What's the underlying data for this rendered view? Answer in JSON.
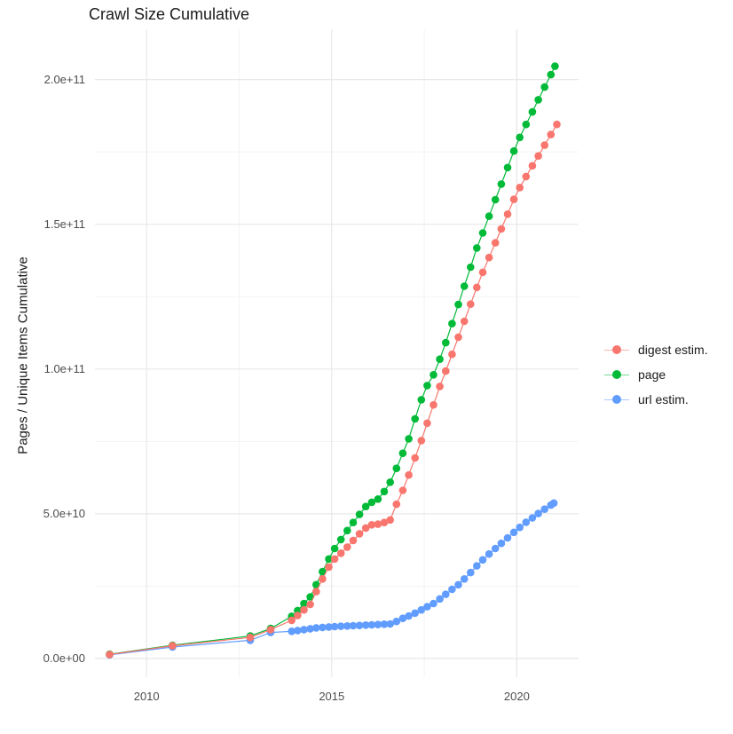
{
  "chart_data": {
    "type": "scatter",
    "title": "Crawl Size Cumulative",
    "xlabel": "",
    "ylabel": "Pages / Unique Items Cumulative",
    "value_unit": "items, values in billions (1e9)",
    "grid": "on",
    "axes": {
      "x": {
        "major_ticks": [
          2010,
          2015,
          2020
        ],
        "tick_labels": [
          "2010",
          "2015",
          "2020"
        ],
        "minor_ticks": [
          2012.5,
          2017.5
        ],
        "range": [
          2008.6,
          2021.7
        ]
      },
      "y": {
        "major_ticks": [
          0,
          50,
          100,
          150,
          200
        ],
        "tick_labels": [
          "0.0e+00",
          "5.0e+10",
          "1.0e+11",
          "1.5e+11",
          "2.0e+11"
        ],
        "minor_ticks": [
          25,
          75,
          125,
          175
        ],
        "range": [
          0,
          210
        ]
      }
    },
    "legend": {
      "position": "right",
      "items": [
        "digest estim.",
        "page",
        "url estim."
      ]
    },
    "series": [
      {
        "name": "digest estim.",
        "color": "#F8766D",
        "points": [
          [
            2009.0,
            1.4
          ],
          [
            2010.7,
            4.4
          ],
          [
            2012.8,
            7.3
          ],
          [
            2013.35,
            10.0
          ],
          [
            2013.92,
            13.2
          ],
          [
            2014.08,
            14.9
          ],
          [
            2014.25,
            16.8
          ],
          [
            2014.42,
            18.7
          ],
          [
            2014.58,
            23.1
          ],
          [
            2014.75,
            27.5
          ],
          [
            2014.92,
            31.6
          ],
          [
            2015.08,
            34.4
          ],
          [
            2015.25,
            36.4
          ],
          [
            2015.42,
            38.5
          ],
          [
            2015.58,
            40.8
          ],
          [
            2015.75,
            43.1
          ],
          [
            2015.92,
            45.1
          ],
          [
            2016.08,
            46.2
          ],
          [
            2016.25,
            46.4
          ],
          [
            2016.42,
            47.0
          ],
          [
            2016.58,
            47.9
          ],
          [
            2016.75,
            53.3
          ],
          [
            2016.92,
            58.1
          ],
          [
            2017.08,
            63.4
          ],
          [
            2017.25,
            69.3
          ],
          [
            2017.42,
            75.3
          ],
          [
            2017.58,
            81.3
          ],
          [
            2017.75,
            87.6
          ],
          [
            2017.92,
            94.0
          ],
          [
            2018.08,
            99.3
          ],
          [
            2018.25,
            105.1
          ],
          [
            2018.42,
            111.0
          ],
          [
            2018.58,
            116.5
          ],
          [
            2018.75,
            122.4
          ],
          [
            2018.92,
            128.2
          ],
          [
            2019.08,
            133.4
          ],
          [
            2019.25,
            138.5
          ],
          [
            2019.42,
            143.6
          ],
          [
            2019.58,
            148.4
          ],
          [
            2019.75,
            153.5
          ],
          [
            2019.92,
            158.6
          ],
          [
            2020.08,
            162.7
          ],
          [
            2020.25,
            166.5
          ],
          [
            2020.42,
            170.2
          ],
          [
            2020.58,
            173.6
          ],
          [
            2020.75,
            177.3
          ],
          [
            2020.92,
            181.0
          ],
          [
            2021.08,
            184.5
          ]
        ]
      },
      {
        "name": "page",
        "color": "#00BA38",
        "points": [
          [
            2009.0,
            1.5
          ],
          [
            2010.7,
            4.6
          ],
          [
            2012.8,
            7.8
          ],
          [
            2013.35,
            10.4
          ],
          [
            2013.92,
            14.6
          ],
          [
            2014.08,
            16.6
          ],
          [
            2014.25,
            19.0
          ],
          [
            2014.42,
            21.3
          ],
          [
            2014.58,
            25.5
          ],
          [
            2014.75,
            30.0
          ],
          [
            2014.92,
            34.4
          ],
          [
            2015.08,
            38.0
          ],
          [
            2015.25,
            41.1
          ],
          [
            2015.42,
            44.2
          ],
          [
            2015.58,
            47.0
          ],
          [
            2015.75,
            49.8
          ],
          [
            2015.92,
            52.5
          ],
          [
            2016.08,
            54.0
          ],
          [
            2016.25,
            55.1
          ],
          [
            2016.42,
            57.7
          ],
          [
            2016.58,
            60.9
          ],
          [
            2016.75,
            65.7
          ],
          [
            2016.92,
            70.9
          ],
          [
            2017.08,
            75.9
          ],
          [
            2017.25,
            82.8
          ],
          [
            2017.42,
            89.4
          ],
          [
            2017.58,
            94.3
          ],
          [
            2017.75,
            98.0
          ],
          [
            2017.92,
            103.4
          ],
          [
            2018.08,
            109.1
          ],
          [
            2018.25,
            115.7
          ],
          [
            2018.42,
            122.3
          ],
          [
            2018.58,
            128.6
          ],
          [
            2018.75,
            135.2
          ],
          [
            2018.92,
            141.8
          ],
          [
            2019.08,
            147.0
          ],
          [
            2019.25,
            152.8
          ],
          [
            2019.42,
            158.5
          ],
          [
            2019.58,
            163.9
          ],
          [
            2019.75,
            169.6
          ],
          [
            2019.92,
            175.3
          ],
          [
            2020.08,
            180.0
          ],
          [
            2020.25,
            184.5
          ],
          [
            2020.42,
            188.8
          ],
          [
            2020.58,
            193.0
          ],
          [
            2020.75,
            197.4
          ],
          [
            2020.92,
            201.7
          ],
          [
            2021.03,
            204.6
          ]
        ]
      },
      {
        "name": "url estim.",
        "color": "#619CFF",
        "points": [
          [
            2009.0,
            1.3
          ],
          [
            2010.7,
            4.0
          ],
          [
            2012.8,
            6.3
          ],
          [
            2013.35,
            9.0
          ],
          [
            2013.92,
            9.4
          ],
          [
            2014.08,
            9.7
          ],
          [
            2014.25,
            10.0
          ],
          [
            2014.42,
            10.3
          ],
          [
            2014.58,
            10.6
          ],
          [
            2014.75,
            10.75
          ],
          [
            2014.92,
            10.9
          ],
          [
            2015.08,
            11.05
          ],
          [
            2015.25,
            11.15
          ],
          [
            2015.42,
            11.25
          ],
          [
            2015.58,
            11.35
          ],
          [
            2015.75,
            11.45
          ],
          [
            2015.92,
            11.55
          ],
          [
            2016.08,
            11.65
          ],
          [
            2016.25,
            11.75
          ],
          [
            2016.42,
            11.85
          ],
          [
            2016.58,
            11.95
          ],
          [
            2016.75,
            12.8
          ],
          [
            2016.92,
            13.9
          ],
          [
            2017.08,
            14.7
          ],
          [
            2017.25,
            15.7
          ],
          [
            2017.42,
            16.8
          ],
          [
            2017.58,
            17.9
          ],
          [
            2017.75,
            19.0
          ],
          [
            2017.92,
            20.6
          ],
          [
            2018.08,
            22.2
          ],
          [
            2018.25,
            23.9
          ],
          [
            2018.42,
            25.5
          ],
          [
            2018.58,
            27.5
          ],
          [
            2018.75,
            29.7
          ],
          [
            2018.92,
            32.0
          ],
          [
            2019.08,
            34.1
          ],
          [
            2019.25,
            36.1
          ],
          [
            2019.42,
            38.0
          ],
          [
            2019.58,
            39.8
          ],
          [
            2019.75,
            41.7
          ],
          [
            2019.92,
            43.6
          ],
          [
            2020.08,
            45.3
          ],
          [
            2020.25,
            47.1
          ],
          [
            2020.42,
            48.6
          ],
          [
            2020.58,
            50.1
          ],
          [
            2020.75,
            51.6
          ],
          [
            2020.92,
            53.0
          ],
          [
            2021.0,
            53.7
          ]
        ]
      }
    ],
    "colors": {
      "major_grid": "#e8e8e8",
      "minor_grid": "#f3f3f3",
      "title_text": "#1a1a1a",
      "tick_text": "#4d4d4d"
    }
  }
}
